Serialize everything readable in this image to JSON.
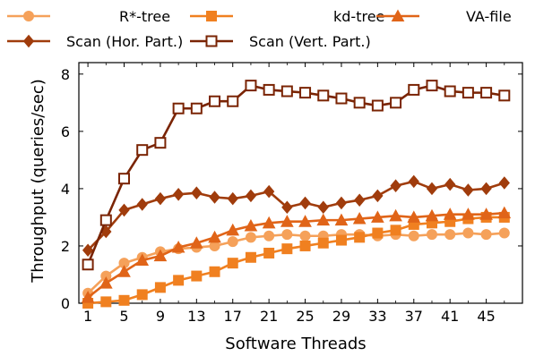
{
  "chart_data": {
    "type": "line",
    "xlabel": "Software Threads",
    "ylabel": "Throughput (queries/sec)",
    "xlim": [
      0,
      49
    ],
    "ylim": [
      0,
      8.4
    ],
    "x_ticks": [
      "1",
      "5",
      "9",
      "13",
      "17",
      "21",
      "25",
      "29",
      "33",
      "37",
      "41",
      "45"
    ],
    "y_ticks": [
      "0",
      "2",
      "4",
      "6",
      "8"
    ],
    "grid": false,
    "legend_placement": "top",
    "x": [
      1,
      3,
      5,
      7,
      9,
      11,
      13,
      15,
      17,
      19,
      21,
      23,
      25,
      27,
      29,
      31,
      33,
      35,
      37,
      39,
      41,
      43,
      45,
      47
    ],
    "series": [
      {
        "name": "R*-tree",
        "color": "#f5a15a",
        "marker": "circle-filled",
        "values": [
          0.35,
          0.95,
          1.4,
          1.6,
          1.8,
          1.9,
          1.95,
          2.0,
          2.15,
          2.3,
          2.35,
          2.4,
          2.35,
          2.35,
          2.4,
          2.4,
          2.35,
          2.4,
          2.35,
          2.4,
          2.4,
          2.45,
          2.4,
          2.45
        ]
      },
      {
        "name": "kd-tree",
        "color": "#f08020",
        "marker": "square-filled",
        "values": [
          0.0,
          0.05,
          0.1,
          0.3,
          0.55,
          0.8,
          0.95,
          1.1,
          1.4,
          1.6,
          1.75,
          1.9,
          2.0,
          2.1,
          2.2,
          2.3,
          2.45,
          2.55,
          2.75,
          2.8,
          2.85,
          2.95,
          3.0,
          3.0
        ]
      },
      {
        "name": "VA-file",
        "color": "#e06418",
        "marker": "triangle-filled",
        "values": [
          0.2,
          0.7,
          1.1,
          1.5,
          1.65,
          1.95,
          2.1,
          2.3,
          2.55,
          2.7,
          2.8,
          2.85,
          2.85,
          2.9,
          2.9,
          2.95,
          3.0,
          3.05,
          3.0,
          3.05,
          3.1,
          3.1,
          3.1,
          3.15
        ]
      },
      {
        "name": "Scan (Hor. Part.)",
        "color": "#a03c0c",
        "marker": "diamond-filled",
        "values": [
          1.85,
          2.5,
          3.25,
          3.45,
          3.65,
          3.8,
          3.85,
          3.7,
          3.65,
          3.75,
          3.9,
          3.35,
          3.5,
          3.35,
          3.5,
          3.6,
          3.75,
          4.1,
          4.25,
          4.0,
          4.15,
          3.95,
          4.0,
          4.2
        ]
      },
      {
        "name": "Scan (Vert. Part.)",
        "color": "#7a2404",
        "marker": "square-open",
        "values": [
          1.35,
          2.9,
          4.35,
          5.35,
          5.6,
          6.8,
          6.8,
          7.05,
          7.05,
          7.6,
          7.45,
          7.4,
          7.35,
          7.25,
          7.15,
          7.0,
          6.9,
          7.0,
          7.45,
          7.6,
          7.4,
          7.35,
          7.35,
          7.25
        ]
      }
    ]
  }
}
